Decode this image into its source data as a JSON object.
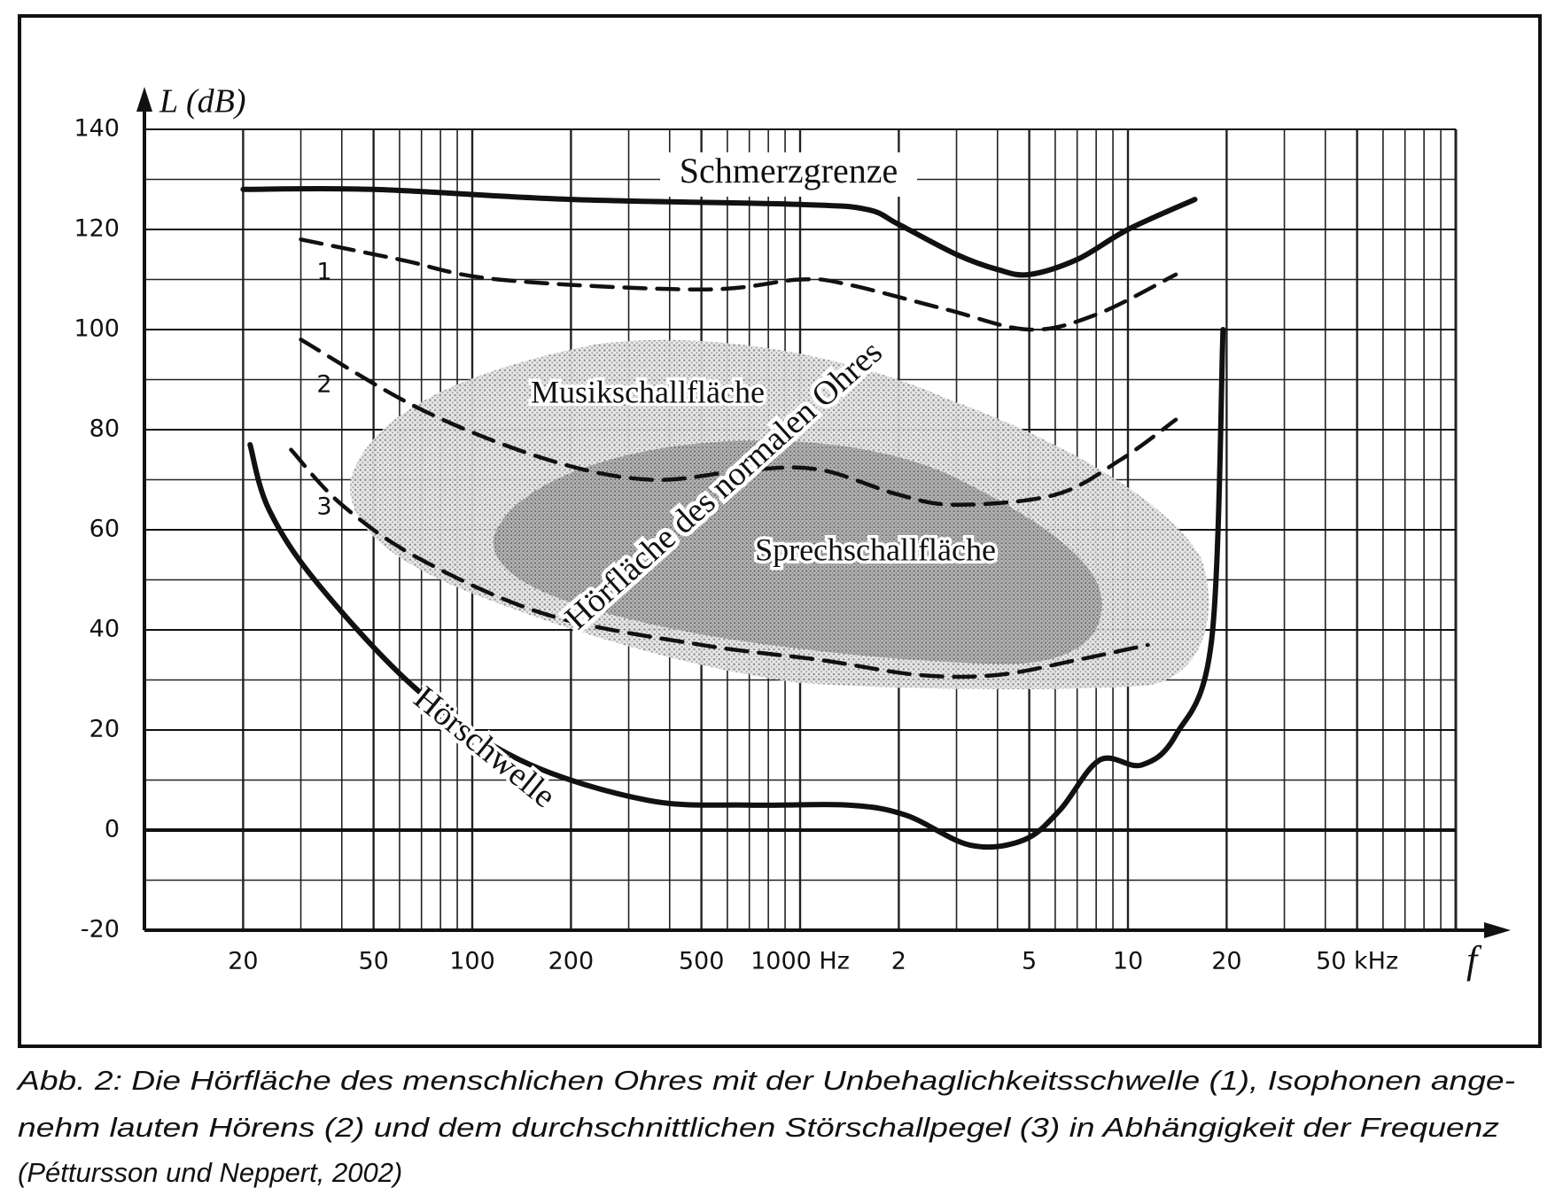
{
  "chart_data": {
    "type": "line",
    "y_label": "L (dB)",
    "x_label": "f",
    "xscale": "log",
    "xlim": [
      10,
      100000
    ],
    "ylim": [
      -20,
      140
    ],
    "yticks": [
      -20,
      0,
      20,
      40,
      60,
      80,
      100,
      120,
      140
    ],
    "xticks": [
      20,
      50,
      100,
      200,
      500,
      {
        "value": 1000,
        "label": "1000 Hz"
      },
      {
        "value": 2000,
        "label": "2"
      },
      {
        "value": 5000,
        "label": "5"
      },
      {
        "value": 10000,
        "label": "10"
      },
      {
        "value": 20000,
        "label": "20"
      },
      {
        "value": 50000,
        "label": "50 kHz"
      }
    ],
    "grid": true,
    "series": [
      {
        "name": "Schmerzgrenze",
        "color": "#111111",
        "dashed": false,
        "x": [
          20,
          50,
          200,
          1000,
          1600,
          2000,
          3000,
          4000,
          5000,
          7000,
          10000,
          16000
        ],
        "values": [
          128,
          128,
          126,
          125,
          124,
          121,
          115,
          112,
          111,
          114,
          120,
          126
        ]
      },
      {
        "name": "1",
        "color": "#111111",
        "dashed": true,
        "x": [
          30,
          60,
          120,
          500,
          1000,
          1400,
          2800,
          5000,
          8000,
          14000
        ],
        "values": [
          118,
          114,
          110,
          108,
          110,
          109,
          104,
          100,
          103,
          111
        ]
      },
      {
        "name": "2",
        "color": "#111111",
        "dashed": true,
        "x": [
          30,
          70,
          170,
          350,
          700,
          1150,
          2000,
          3000,
          6000,
          9500,
          14000
        ],
        "values": [
          98,
          84,
          74,
          70,
          72,
          72,
          67,
          65,
          67,
          74,
          82
        ]
      },
      {
        "name": "3",
        "color": "#111111",
        "dashed": true,
        "x": [
          28,
          40,
          70,
          170,
          500,
          1150,
          2300,
          4000,
          7000,
          11500
        ],
        "values": [
          76,
          65,
          54,
          43,
          37,
          34,
          31,
          31,
          34,
          37
        ]
      },
      {
        "name": "Hörschwelle",
        "color": "#111111",
        "dashed": false,
        "x": [
          21,
          24,
          34,
          68,
          140,
          340,
          700,
          1400,
          2100,
          3300,
          4800,
          6200,
          8200,
          11000,
          14000,
          18000,
          19500
        ],
        "values": [
          77,
          64,
          49,
          28,
          14,
          6,
          5,
          5,
          3,
          -3,
          -2,
          4,
          14,
          13,
          19,
          38,
          100
        ]
      }
    ],
    "annotations": [
      "Musikschallfläche",
      "Sprechschallfläche",
      "Hörfläche des normalen Ohres"
    ],
    "caption": [
      "Abb. 2: Die Hörfläche des menschlichen Ohres mit der Unbehaglichkeitsschwelle (1), Isophonen ange-",
      "nehm lauten Hörens (2) und dem durchschnittlichen Störschallpegel (3) in Abhängigkeit der Frequenz",
      "(Péttursson und Neppert, 2002)"
    ]
  }
}
